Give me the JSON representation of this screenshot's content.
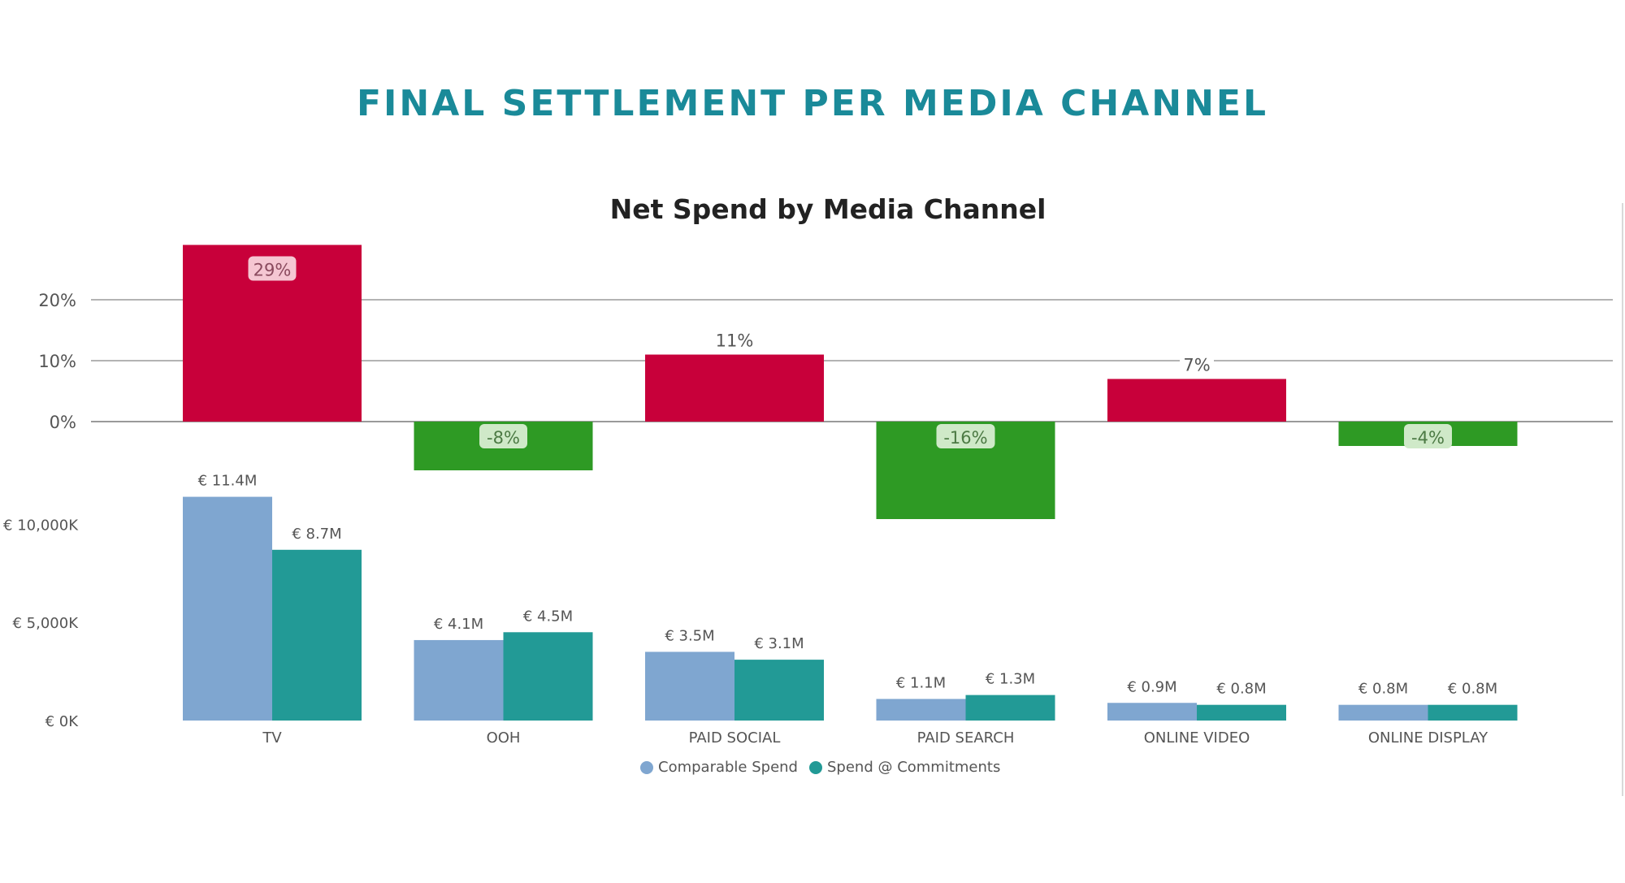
{
  "page": {
    "title": "FINAL SETTLEMENT PER MEDIA CHANNEL"
  },
  "colors": {
    "title": "#1a8a99",
    "positive": "#c8003a",
    "negative": "#2e9a24",
    "comparable": "#7fa6d0",
    "commitments": "#229a96",
    "gridline": "#9a9a9a",
    "label": "#555555"
  },
  "chart_data": [
    {
      "type": "bar",
      "title": "Net Spend by Media Channel",
      "categories": [
        "TV",
        "OOH",
        "PAID SOCIAL",
        "PAID SEARCH",
        "ONLINE VIDEO",
        "ONLINE DISPLAY"
      ],
      "values": [
        29,
        -8,
        11,
        -16,
        7,
        -4
      ],
      "data_labels": [
        "29%",
        "-8%",
        "11%",
        "-16%",
        "7%",
        "-4%"
      ],
      "yticks": [
        0,
        10,
        20
      ],
      "ytick_labels": [
        "0%",
        "10%",
        "20%"
      ],
      "ylim": [
        -5,
        29
      ],
      "grid": true
    },
    {
      "type": "bar",
      "categories": [
        "TV",
        "OOH",
        "PAID SOCIAL",
        "PAID SEARCH",
        "ONLINE VIDEO",
        "ONLINE DISPLAY"
      ],
      "series": [
        {
          "name": "Comparable Spend",
          "values": [
            11400,
            4100,
            3500,
            1100,
            900,
            800
          ],
          "data_labels": [
            "€ 11.4M",
            "€ 4.1M",
            "€ 3.5M",
            "€ 1.1M",
            "€ 0.9M",
            "€ 0.8M"
          ]
        },
        {
          "name": "Spend @ Commitments",
          "values": [
            8700,
            4500,
            3100,
            1300,
            800,
            800
          ],
          "data_labels": [
            "€ 8.7M",
            "€ 4.5M",
            "€ 3.1M",
            "€ 1.3M",
            "€ 0.8M",
            "€ 0.8M"
          ]
        }
      ],
      "yticks": [
        0,
        5000,
        10000
      ],
      "ytick_labels": [
        "€ 0K",
        "€ 5,000K",
        "€ 10,000K"
      ],
      "ylim": [
        0,
        11400
      ],
      "grid": false,
      "legend": "bottom"
    }
  ]
}
